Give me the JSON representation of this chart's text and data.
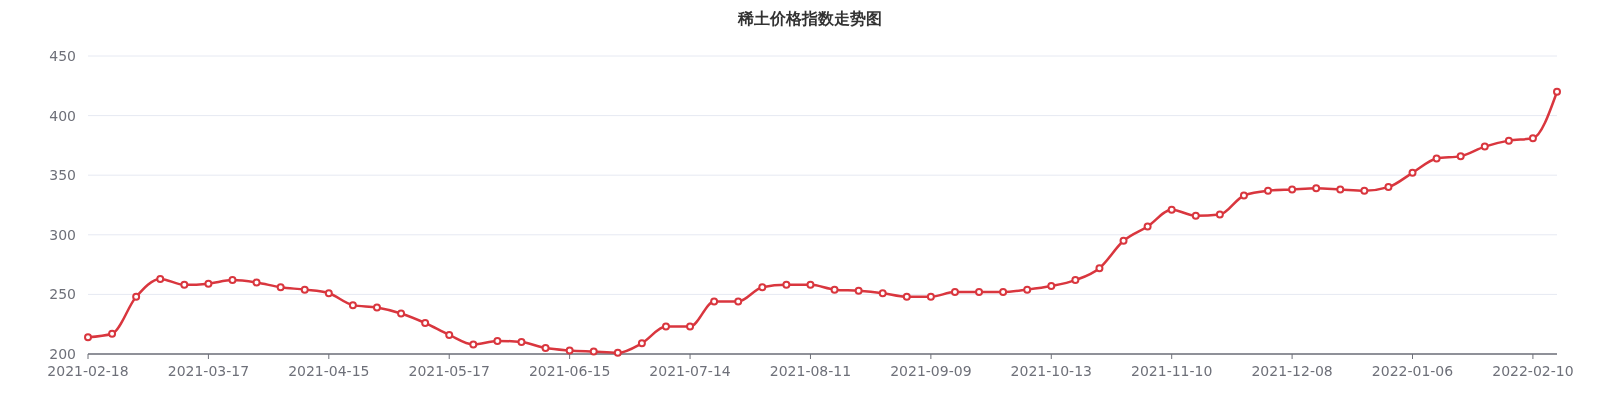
{
  "chart_data": {
    "type": "line",
    "title": "稀土价格指数走势图",
    "categories": [
      "2021-02-18",
      null,
      null,
      null,
      null,
      "2021-03-17",
      null,
      null,
      null,
      null,
      "2021-04-15",
      null,
      null,
      null,
      null,
      "2021-05-17",
      null,
      null,
      null,
      null,
      "2021-06-15",
      null,
      null,
      null,
      null,
      "2021-07-14",
      null,
      null,
      null,
      null,
      "2021-08-11",
      null,
      null,
      null,
      null,
      "2021-09-09",
      null,
      null,
      null,
      null,
      "2021-10-13",
      null,
      null,
      null,
      null,
      "2021-11-10",
      null,
      null,
      null,
      null,
      "2021-12-08",
      null,
      null,
      null,
      null,
      "2022-01-06",
      null,
      null,
      null,
      null,
      "2022-02-10",
      null
    ],
    "series": [
      {
        "color": "#d9363e",
        "values": [
          214,
          217,
          248,
          263,
          258,
          259,
          262,
          260,
          256,
          254,
          251,
          241,
          239,
          234,
          226,
          216,
          208,
          211,
          210,
          205,
          203,
          202,
          201,
          209,
          223,
          223,
          244,
          244,
          256,
          258,
          258,
          254,
          253,
          251,
          248,
          248,
          252,
          252,
          252,
          254,
          257,
          262,
          272,
          295,
          307,
          321,
          316,
          317,
          333,
          337,
          338,
          339,
          338,
          337,
          340,
          352,
          364,
          366,
          374,
          379,
          381,
          420
        ]
      }
    ],
    "ylim": [
      200,
      450
    ],
    "yticks": [
      200,
      250,
      300,
      350,
      400,
      450
    ],
    "grid": "y",
    "marker": "circle"
  }
}
